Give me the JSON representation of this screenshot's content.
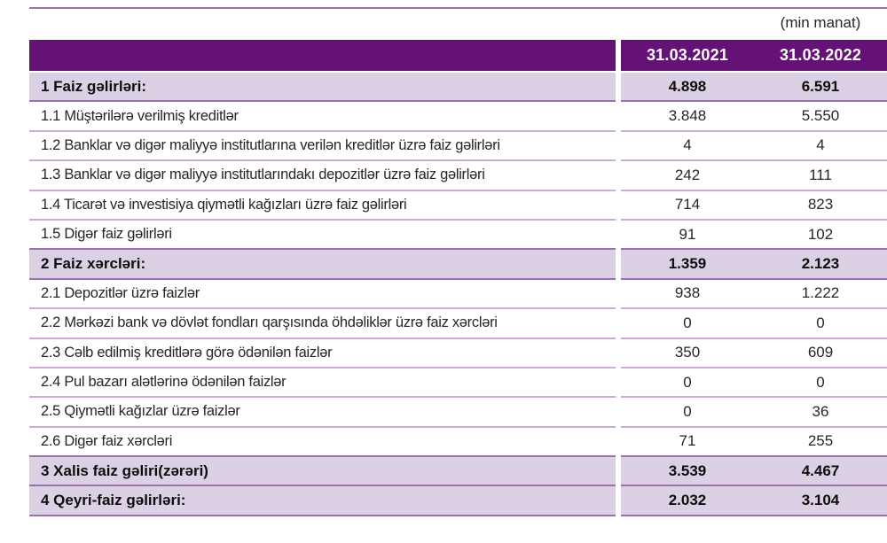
{
  "unit_note": "(min manat)",
  "colors": {
    "header_bg": "#651277",
    "highlight_row_bg": "#dcd0e4",
    "separator_light": "#c9abd5",
    "separator_dark": "#9c70ad",
    "text": "#262624",
    "header_text": "#ffffff"
  },
  "table": {
    "columns": [
      "31.03.2021",
      "31.03.2022"
    ],
    "rows": [
      {
        "label": "1 Faiz gəlirləri:",
        "v2021": "4.898",
        "v2022": "6.591",
        "highlight": true
      },
      {
        "label": "1.1 Müştərilərə verilmiş kreditlər",
        "v2021": "3.848",
        "v2022": "5.550",
        "highlight": false
      },
      {
        "label": "1.2 Banklar və digər maliyyə institutlarına verilən kreditlər üzrə faiz gəlirləri",
        "v2021": "4",
        "v2022": "4",
        "highlight": false
      },
      {
        "label": "1.3 Banklar və digər maliyyə institutlarındakı depozitlər üzrə faiz gəlirləri",
        "v2021": "242",
        "v2022": "111",
        "highlight": false
      },
      {
        "label": "1.4 Ticarət və investisiya qiymətli kağızları üzrə faiz gəlirləri",
        "v2021": "714",
        "v2022": "823",
        "highlight": false
      },
      {
        "label": "1.5 Digər faiz gəlirləri",
        "v2021": "91",
        "v2022": "102",
        "highlight": false
      },
      {
        "label": "2 Faiz xərcləri:",
        "v2021": "1.359",
        "v2022": "2.123",
        "highlight": true
      },
      {
        "label": "2.1 Depozitlər üzrə faizlər",
        "v2021": "938",
        "v2022": "1.222",
        "highlight": false
      },
      {
        "label": "2.2 Mərkəzi bank və dövlət fondları qarşısında öhdəliklər üzrə faiz xərcləri",
        "v2021": "0",
        "v2022": "0",
        "highlight": false
      },
      {
        "label": "2.3 Cəlb edilmiş kreditlərə görə ödənilən faizlər",
        "v2021": "350",
        "v2022": "609",
        "highlight": false
      },
      {
        "label": "2.4 Pul bazarı alətlərinə ödənilən faizlər",
        "v2021": "0",
        "v2022": "0",
        "highlight": false
      },
      {
        "label": "2.5 Qiymətli kağızlar üzrə faizlər",
        "v2021": "0",
        "v2022": "36",
        "highlight": false
      },
      {
        "label": "2.6 Digər faiz xərcləri",
        "v2021": "71",
        "v2022": "255",
        "highlight": false
      },
      {
        "label": "3 Xalis faiz gəliri(zərəri)",
        "v2021": "3.539",
        "v2022": "4.467",
        "highlight": true
      },
      {
        "label": "4 Qeyri-faiz gəlirləri:",
        "v2021": "2.032",
        "v2022": "3.104",
        "highlight": true
      }
    ]
  }
}
